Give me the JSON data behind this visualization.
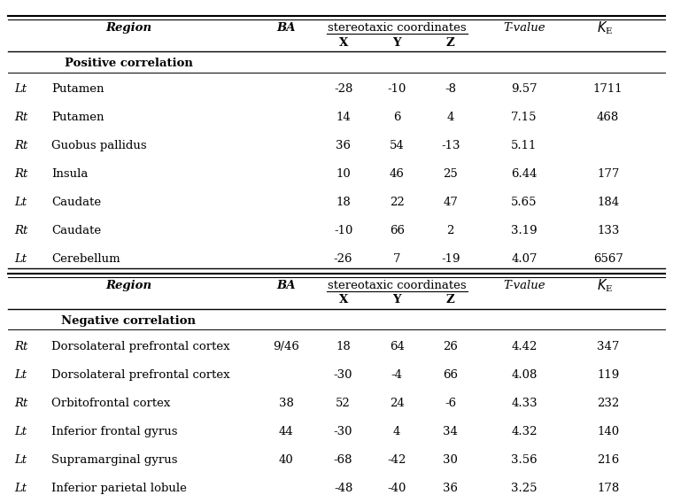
{
  "pos_rows": [
    {
      "side": "Lt",
      "region": "Putamen",
      "ba": "",
      "x": "-28",
      "y": "-10",
      "z": "-8",
      "t": "9.57",
      "ke": "1711"
    },
    {
      "side": "Rt",
      "region": "Putamen",
      "ba": "",
      "x": "14",
      "y": "6",
      "z": "4",
      "t": "7.15",
      "ke": "468"
    },
    {
      "side": "Rt",
      "region": "Guobus pallidus",
      "ba": "",
      "x": "36",
      "y": "54",
      "z": "-13",
      "t": "5.11",
      "ke": ""
    },
    {
      "side": "Rt",
      "region": "Insula",
      "ba": "",
      "x": "10",
      "y": "46",
      "z": "25",
      "t": "6.44",
      "ke": "177"
    },
    {
      "side": "Lt",
      "region": "Caudate",
      "ba": "",
      "x": "18",
      "y": "22",
      "z": "47",
      "t": "5.65",
      "ke": "184"
    },
    {
      "side": "Rt",
      "region": "Caudate",
      "ba": "",
      "x": "-10",
      "y": "66",
      "z": "2",
      "t": "3.19",
      "ke": "133"
    },
    {
      "side": "Lt",
      "region": "Cerebellum",
      "ba": "",
      "x": "-26",
      "y": "7",
      "z": "-19",
      "t": "4.07",
      "ke": "6567"
    }
  ],
  "neg_rows": [
    {
      "side": "Rt",
      "region": "Dorsolateral prefrontal cortex",
      "ba": "9/46",
      "x": "18",
      "y": "64",
      "z": "26",
      "t": "4.42",
      "ke": "347"
    },
    {
      "side": "Lt",
      "region": "Dorsolateral prefrontal cortex",
      "ba": "",
      "x": "-30",
      "y": "-4",
      "z": "66",
      "t": "4.08",
      "ke": "119"
    },
    {
      "side": "Rt",
      "region": "Orbitofrontal cortex",
      "ba": "38",
      "x": "52",
      "y": "24",
      "z": "-6",
      "t": "4.33",
      "ke": "232"
    },
    {
      "side": "Lt",
      "region": "Inferior frontal gyrus",
      "ba": "44",
      "x": "-30",
      "y": "4",
      "z": "34",
      "t": "4.32",
      "ke": "140"
    },
    {
      "side": "Lt",
      "region": "Supramarginal gyrus",
      "ba": "40",
      "x": "-68",
      "y": "-42",
      "z": "30",
      "t": "3.56",
      "ke": "216"
    },
    {
      "side": "Lt",
      "region": "Inferior parietal lobule",
      "ba": "",
      "x": "-48",
      "y": "-40",
      "z": "36",
      "t": "3.25",
      "ke": "178"
    }
  ],
  "col_headers": [
    "Region",
    "BA",
    "X",
    "Y",
    "Z",
    "T-value",
    "K_E"
  ],
  "bg_color": "#ffffff",
  "text_color": "#000000",
  "font_size": 9.5
}
